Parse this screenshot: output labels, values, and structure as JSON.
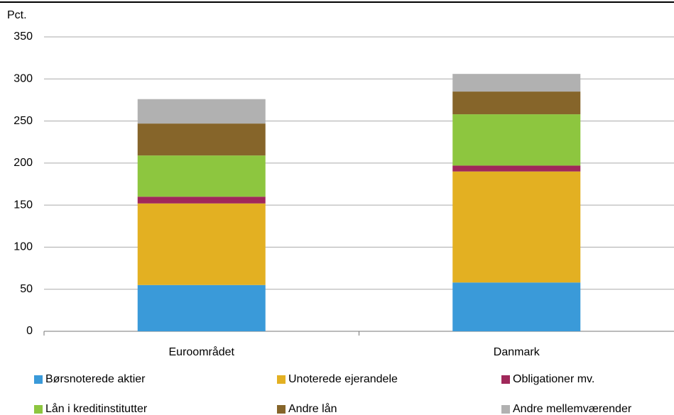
{
  "chart_data": {
    "type": "stacked_bar",
    "y_label": "Pct.",
    "categories": [
      "Euroområdet",
      "Danmark"
    ],
    "series": [
      {
        "name": "Børsnoterede aktier",
        "color": "#3a9ad9",
        "values": [
          55,
          58
        ]
      },
      {
        "name": "Unoterede ejerandele",
        "color": "#e3b022",
        "values": [
          97,
          132
        ]
      },
      {
        "name": "Obligationer mv.",
        "color": "#a0285a",
        "values": [
          8,
          7
        ]
      },
      {
        "name": "Lån i kreditinstitutter",
        "color": "#8dc63f",
        "values": [
          49,
          61
        ]
      },
      {
        "name": "Andre lån",
        "color": "#86652a",
        "values": [
          38,
          27
        ]
      },
      {
        "name": "Andre mellemværender",
        "color": "#b1b1b1",
        "values": [
          29,
          21
        ]
      }
    ],
    "ylim": [
      0,
      350
    ],
    "yticks": [
      0,
      50,
      100,
      150,
      200,
      250,
      300,
      350
    ],
    "grid": true
  }
}
